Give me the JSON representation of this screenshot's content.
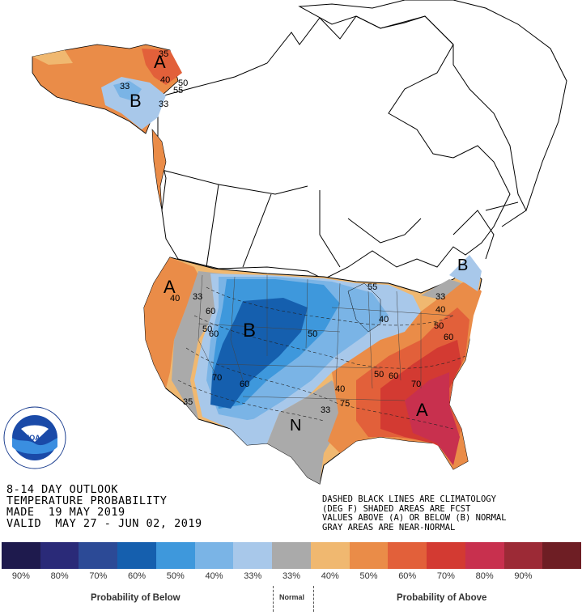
{
  "product": {
    "line1": "8-14 DAY OUTLOOK",
    "line2": "TEMPERATURE PROBABILITY",
    "made": "MADE  19 MAY 2019",
    "valid": "VALID  MAY 27 - JUN 02, 2019"
  },
  "notes": {
    "line1": "DASHED BLACK LINES ARE CLIMATOLOGY",
    "line2": "(DEG F) SHADED AREAS ARE FCST",
    "line3": "VALUES ABOVE (A) OR BELOW (B) NORMAL",
    "line4": "GRAY AREAS ARE NEAR-NORMAL"
  },
  "map_labels": [
    {
      "id": "alaska-above",
      "text": "A"
    },
    {
      "id": "alaska-below",
      "text": "B"
    },
    {
      "id": "west-coast-above",
      "text": "A"
    },
    {
      "id": "central-below",
      "text": "B"
    },
    {
      "id": "northeast-below",
      "text": "B"
    },
    {
      "id": "southeast-above",
      "text": "A"
    },
    {
      "id": "texas-normal",
      "text": "N"
    }
  ],
  "contour_labels": [
    "35",
    "40",
    "50",
    "55",
    "33",
    "33",
    "40",
    "33",
    "60",
    "50",
    "60",
    "70",
    "60",
    "35",
    "50",
    "55",
    "40",
    "33",
    "40",
    "50",
    "60",
    "70",
    "60",
    "50",
    "40",
    "75",
    "33"
  ],
  "legend": {
    "swatches": [
      {
        "label": "90%",
        "color": "#1e1a4d"
      },
      {
        "label": "80%",
        "color": "#2a2a78"
      },
      {
        "label": "70%",
        "color": "#2c4a96"
      },
      {
        "label": "60%",
        "color": "#155fae"
      },
      {
        "label": "50%",
        "color": "#3e98dc"
      },
      {
        "label": "40%",
        "color": "#7ab4e6"
      },
      {
        "label": "33%",
        "color": "#a8c8ea"
      },
      {
        "label": "33%",
        "color": "#aaaaaa"
      },
      {
        "label": "40%",
        "color": "#f0b870"
      },
      {
        "label": "50%",
        "color": "#ea8c48"
      },
      {
        "label": "60%",
        "color": "#e2603a"
      },
      {
        "label": "70%",
        "color": "#d33a32"
      },
      {
        "label": "80%",
        "color": "#c8304e"
      },
      {
        "label": "90%",
        "color": "#9c2a36"
      },
      {
        "label": "",
        "color": "#6e1e24"
      }
    ],
    "below_label": "Probability of Below",
    "normal_label": "Normal",
    "above_label": "Probability of Above"
  },
  "logo": {
    "text": "NOAA",
    "ring_text": "NATIONAL OCEANIC AND ATMOSPHERIC ADMINISTRATION · U.S. DEPARTMENT OF COMMERCE"
  }
}
